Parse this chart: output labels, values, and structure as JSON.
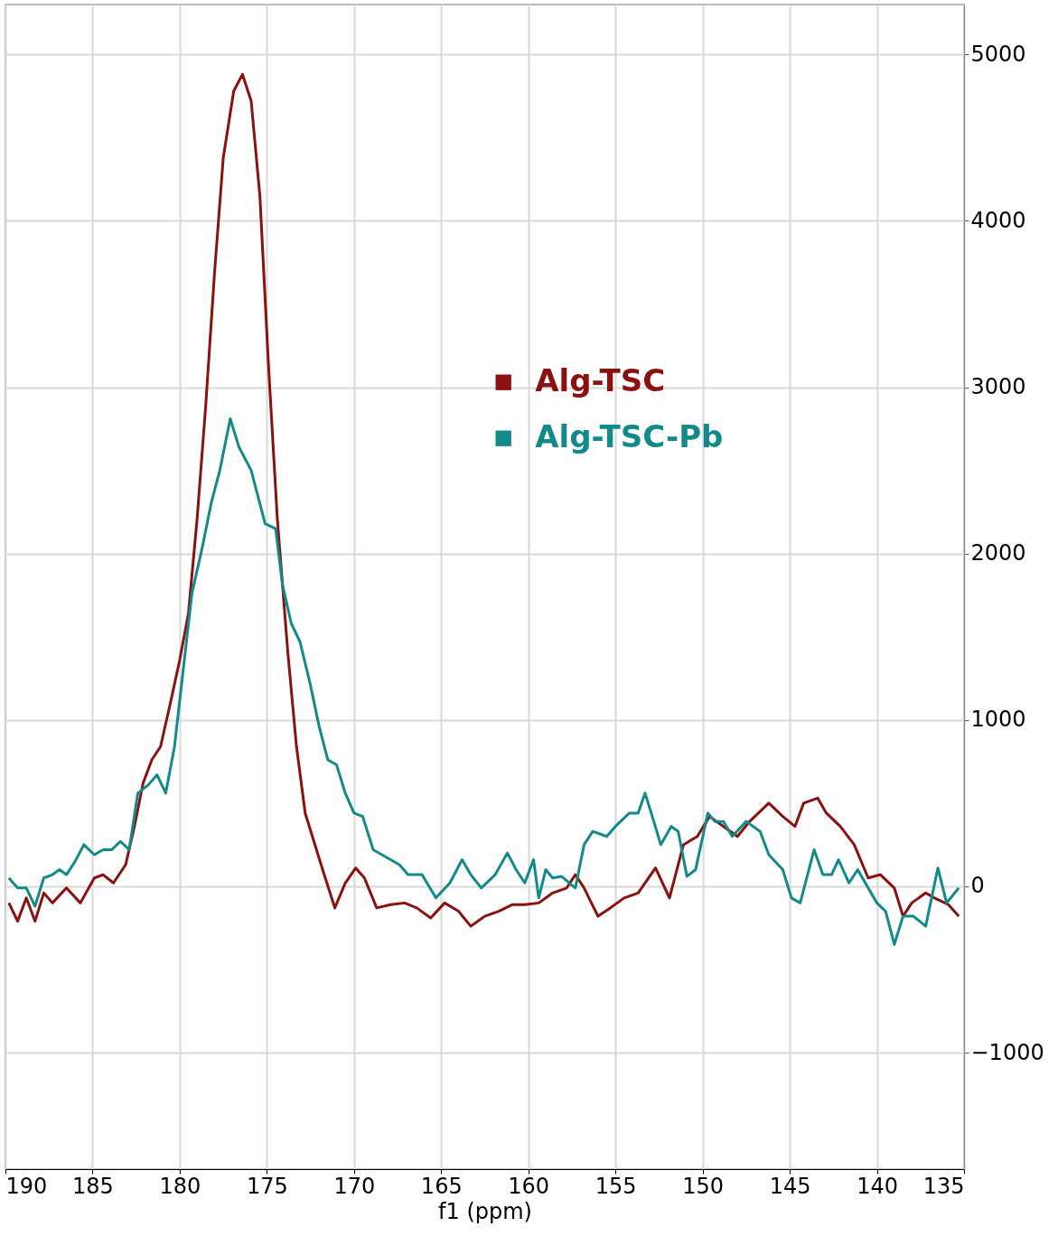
{
  "chart_data": {
    "type": "line",
    "xlabel": "f1 (ppm)",
    "xlim": [
      190,
      135
    ],
    "xticks": [
      190,
      185,
      180,
      175,
      170,
      165,
      160,
      155,
      150,
      145,
      140,
      135
    ],
    "ylim": [
      -1700,
      5300
    ],
    "yticks": [
      -1000,
      0,
      1000,
      2000,
      3000,
      4000,
      5000
    ],
    "grid": true,
    "legend": "top",
    "marker": "none",
    "line_style": "solid",
    "series": [
      {
        "name": "Alg-TSC",
        "color": "#8b1010",
        "x": [
          189.8,
          189.3,
          188.8,
          188.3,
          187.8,
          187.3,
          186.5,
          185.7,
          184.9,
          184.4,
          183.8,
          183.1,
          182.6,
          182.1,
          181.6,
          181.1,
          180.6,
          180.0,
          179.5,
          179.0,
          178.5,
          178.0,
          177.5,
          176.9,
          176.4,
          175.9,
          175.4,
          174.9,
          174.4,
          173.8,
          173.3,
          172.8,
          172.3,
          171.8,
          171.1,
          170.5,
          169.9,
          169.4,
          168.7,
          167.9,
          167.1,
          166.4,
          165.6,
          164.8,
          164.0,
          163.3,
          162.5,
          161.7,
          160.9,
          160.2,
          159.4,
          158.6,
          157.8,
          157.3,
          156.8,
          156.0,
          155.3,
          154.5,
          153.7,
          152.7,
          151.9,
          151.1,
          150.3,
          149.6,
          148.8,
          148.0,
          147.3,
          146.2,
          145.4,
          144.7,
          144.2,
          143.4,
          142.9,
          142.1,
          141.3,
          140.5,
          139.8,
          139.0,
          138.5,
          138.0,
          137.2,
          136.7,
          135.9,
          135.3
        ],
        "values": [
          -100,
          -210,
          -70,
          -210,
          -40,
          -100,
          -10,
          -100,
          50,
          70,
          20,
          130,
          360,
          620,
          760,
          840,
          1070,
          1360,
          1640,
          2210,
          2900,
          3690,
          4380,
          4780,
          4880,
          4720,
          4150,
          3120,
          2210,
          1410,
          840,
          440,
          270,
          100,
          -130,
          20,
          110,
          50,
          -130,
          -110,
          -100,
          -130,
          -190,
          -100,
          -150,
          -240,
          -180,
          -150,
          -110,
          -110,
          -100,
          -40,
          -10,
          70,
          -10,
          -180,
          -130,
          -70,
          -40,
          110,
          -70,
          250,
          300,
          420,
          360,
          300,
          390,
          500,
          420,
          360,
          500,
          530,
          440,
          360,
          250,
          50,
          70,
          -10,
          -180,
          -100,
          -40,
          -70,
          -110,
          -180
        ]
      },
      {
        "name": "Alg-TSC-Pb",
        "color": "#138a8a",
        "x": [
          189.8,
          189.3,
          188.8,
          188.3,
          187.8,
          187.3,
          186.9,
          186.5,
          186.0,
          185.5,
          184.9,
          184.4,
          183.9,
          183.4,
          182.9,
          182.4,
          181.8,
          181.3,
          180.8,
          180.3,
          179.8,
          179.3,
          178.7,
          178.2,
          177.7,
          177.1,
          176.6,
          175.9,
          175.1,
          174.5,
          174.1,
          173.6,
          173.1,
          172.5,
          172.0,
          171.5,
          171.0,
          170.5,
          170.0,
          169.5,
          168.9,
          168.4,
          167.9,
          167.4,
          166.9,
          166.1,
          165.3,
          164.5,
          163.8,
          163.3,
          162.7,
          161.9,
          161.2,
          160.7,
          160.2,
          159.7,
          159.4,
          159.0,
          158.6,
          158.1,
          157.3,
          156.8,
          156.3,
          155.5,
          155.0,
          154.2,
          153.7,
          153.3,
          152.8,
          152.4,
          151.8,
          151.4,
          150.9,
          150.4,
          149.7,
          149.3,
          148.8,
          148.3,
          147.5,
          146.7,
          146.2,
          145.4,
          144.9,
          144.4,
          143.6,
          143.1,
          142.6,
          142.2,
          141.6,
          141.1,
          140.5,
          140.0,
          139.5,
          139.0,
          138.5,
          137.9,
          137.2,
          136.5,
          136.0,
          135.3
        ],
        "values": [
          50,
          -10,
          -10,
          -120,
          50,
          70,
          100,
          70,
          150,
          250,
          190,
          220,
          220,
          270,
          220,
          560,
          610,
          670,
          560,
          840,
          1300,
          1760,
          2040,
          2300,
          2500,
          2810,
          2640,
          2500,
          2180,
          2150,
          1810,
          1580,
          1470,
          1210,
          960,
          760,
          730,
          560,
          440,
          420,
          220,
          190,
          160,
          130,
          70,
          70,
          -70,
          20,
          160,
          70,
          -10,
          70,
          200,
          100,
          20,
          160,
          -70,
          100,
          50,
          60,
          -10,
          250,
          330,
          300,
          360,
          440,
          440,
          560,
          390,
          250,
          360,
          330,
          60,
          100,
          440,
          390,
          390,
          300,
          390,
          330,
          190,
          100,
          -70,
          -100,
          220,
          70,
          70,
          160,
          20,
          100,
          -10,
          -100,
          -150,
          -350,
          -180,
          -180,
          -240,
          110,
          -100,
          -10
        ]
      }
    ]
  }
}
